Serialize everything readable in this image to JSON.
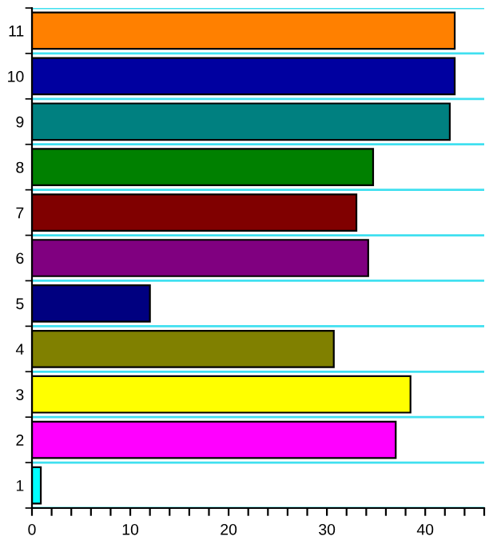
{
  "chart_data": {
    "type": "bar",
    "orientation": "horizontal",
    "categories": [
      "11",
      "10",
      "9",
      "8",
      "7",
      "6",
      "5",
      "4",
      "3",
      "2",
      "1"
    ],
    "values": [
      43,
      43,
      42.5,
      34.7,
      33,
      34.2,
      12,
      30.7,
      38.5,
      37,
      0.9
    ],
    "colors": [
      "#ff8000",
      "#0000a0",
      "#008080",
      "#008000",
      "#800000",
      "#800080",
      "#000080",
      "#808000",
      "#ffff00",
      "#ff00ff",
      "#00ffff"
    ],
    "xlim": [
      0,
      46
    ],
    "xticks": [
      0,
      {
        "value": 2,
        "label": null
      },
      {
        "value": 4,
        "label": null
      },
      {
        "value": 6,
        "label": null
      },
      {
        "value": 8,
        "label": null
      },
      10,
      {
        "value": 12,
        "label": null
      },
      {
        "value": 14,
        "label": null
      },
      {
        "value": 16,
        "label": null
      },
      {
        "value": 18,
        "label": null
      },
      20,
      {
        "value": 22,
        "label": null
      },
      {
        "value": 24,
        "label": null
      },
      {
        "value": 26,
        "label": null
      },
      {
        "value": 28,
        "label": null
      },
      30,
      {
        "value": 32,
        "label": null
      },
      {
        "value": 34,
        "label": null
      },
      {
        "value": 36,
        "label": null
      },
      {
        "value": 38,
        "label": null
      },
      40,
      {
        "value": 42,
        "label": null
      },
      {
        "value": 44,
        "label": null
      },
      {
        "value": 46,
        "label": null
      }
    ],
    "grid": "y"
  }
}
